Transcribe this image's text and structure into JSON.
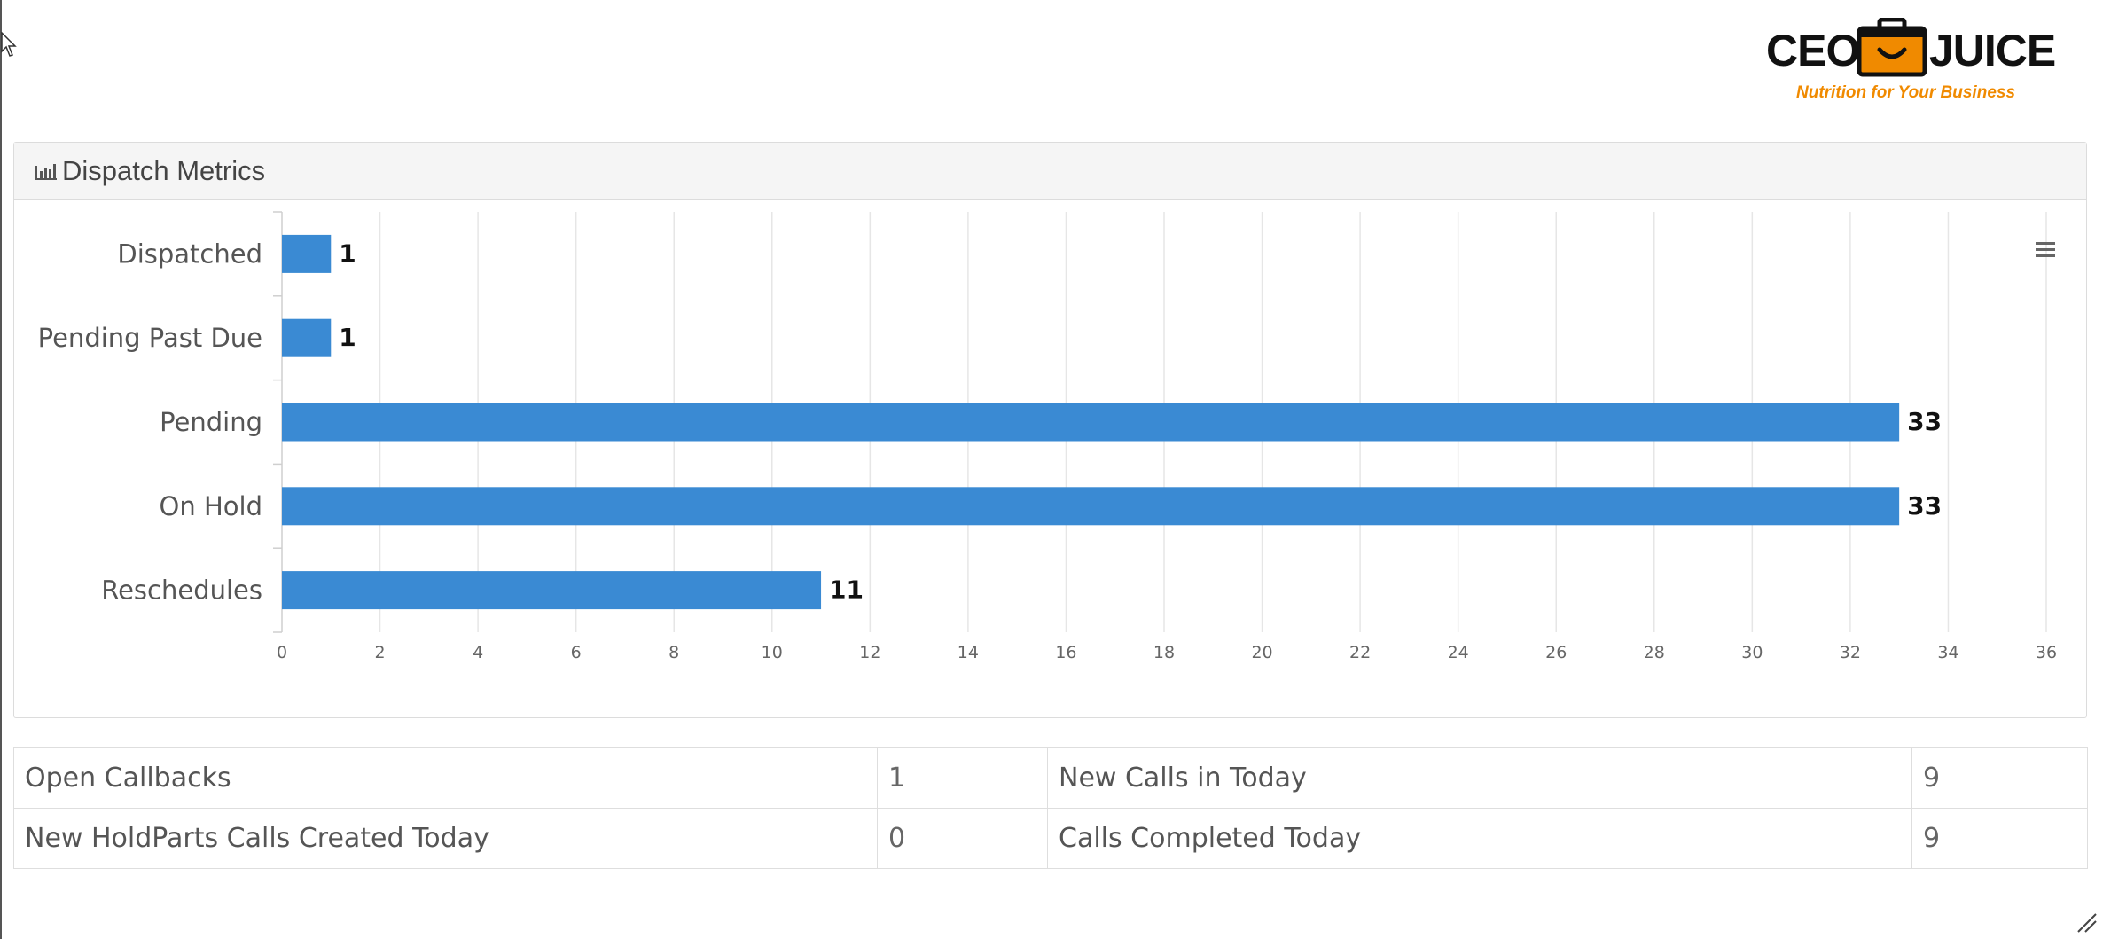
{
  "logo": {
    "left_text": "CEO",
    "right_text": "JUICE",
    "tagline": "Nutrition for Your Business",
    "accent_color": "#f08a00"
  },
  "panel": {
    "title": "Dispatch Metrics",
    "title_icon": "bar-chart-icon",
    "menu_icon": "hamburger-menu-icon"
  },
  "chart_data": {
    "type": "bar",
    "orientation": "horizontal",
    "categories": [
      "Dispatched",
      "Pending Past Due",
      "Pending",
      "On Hold",
      "Reschedules"
    ],
    "values": [
      1,
      1,
      33,
      33,
      11
    ],
    "data_labels": [
      "1",
      "1",
      "33",
      "33",
      "11"
    ],
    "xlim": [
      0,
      36
    ],
    "x_ticks": [
      0,
      2,
      4,
      6,
      8,
      10,
      12,
      14,
      16,
      18,
      20,
      22,
      24,
      26,
      28,
      30,
      32,
      34,
      36
    ],
    "grid": true,
    "legend": "none",
    "bar_color": "#3a8ad3"
  },
  "stats": {
    "rows": [
      {
        "label1": "Open Callbacks",
        "value1": "1",
        "label2": "New Calls in Today",
        "value2": "9"
      },
      {
        "label1": "New HoldParts Calls Created Today",
        "value1": "0",
        "label2": "Calls Completed Today",
        "value2": "9"
      }
    ]
  }
}
